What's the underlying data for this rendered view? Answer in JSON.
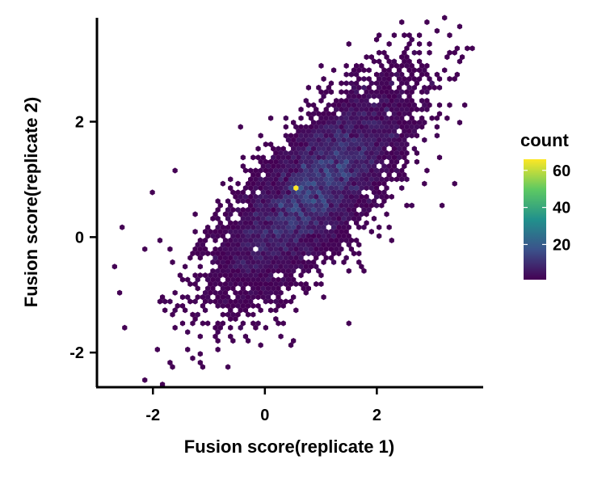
{
  "chart_data": {
    "type": "hexbin",
    "title": "",
    "xlabel": "Fusion score(replicate 1)",
    "ylabel": "Fusion score(replicate 2)",
    "xlim": [
      -3.0,
      3.9
    ],
    "ylim": [
      -2.6,
      3.8
    ],
    "x_ticks": [
      -2,
      0,
      2
    ],
    "y_ticks": [
      -2,
      0,
      2
    ],
    "x_tick_labels": [
      "-2",
      "0",
      "2"
    ],
    "y_tick_labels": [
      "-2",
      "0",
      "2"
    ],
    "grid": false,
    "legend_position": "right",
    "colorbar": {
      "title": "count",
      "range": [
        1,
        66
      ],
      "ticks": [
        20,
        40,
        60
      ],
      "tick_labels": [
        "20",
        "40",
        "60"
      ],
      "colormap": "viridis",
      "colors": [
        "#440154",
        "#3b528b",
        "#21918c",
        "#5ec962",
        "#fde725"
      ]
    },
    "estimated_density": {
      "mean": [
        0.9,
        0.85
      ],
      "sd": [
        0.85,
        0.9
      ],
      "correlation": 0.75,
      "max_count_bin": {
        "x": 0.55,
        "y": 0.82,
        "count": 66
      }
    },
    "outlier_points": [
      [
        3.1,
        3.55
      ],
      [
        2.6,
        3.4
      ],
      [
        -2.55,
        0.18
      ],
      [
        -2.7,
        -0.52
      ],
      [
        -2.6,
        -0.97
      ],
      [
        -1.85,
        -1.1
      ],
      [
        -1.3,
        -1.5
      ],
      [
        -0.8,
        -1.8
      ],
      [
        -0.7,
        -2.27
      ],
      [
        -0.1,
        -1.85
      ],
      [
        3.5,
        1.95
      ],
      [
        3.6,
        2.3
      ],
      [
        3.4,
        0.9
      ],
      [
        3.2,
        0.55
      ],
      [
        -2.0,
        0.8
      ],
      [
        -1.6,
        1.2
      ],
      [
        -0.4,
        1.9
      ],
      [
        0.5,
        -1.9
      ],
      [
        1.5,
        -1.5
      ],
      [
        2.3,
        3.0
      ],
      [
        1.0,
        3.0
      ],
      [
        3.0,
        2.7
      ],
      [
        -2.1,
        -0.2
      ],
      [
        -1.5,
        -0.7
      ],
      [
        2.9,
        1.2
      ]
    ]
  }
}
